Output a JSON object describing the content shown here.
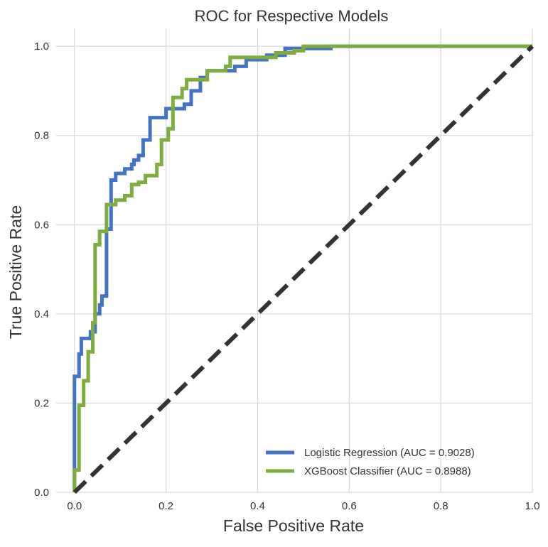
{
  "chart_data": {
    "type": "line",
    "title": "ROC for Respective Models",
    "xlabel": "False Positive Rate",
    "ylabel": "True Positive Rate",
    "xlim": [
      -0.04,
      1.0
    ],
    "ylim": [
      0.0,
      1.04
    ],
    "xticks": [
      "0.0",
      "0.2",
      "0.4",
      "0.6",
      "0.8",
      "1.0"
    ],
    "yticks": [
      "0.0",
      "0.2",
      "0.4",
      "0.6",
      "0.8",
      "1.0"
    ],
    "grid": true,
    "legend_position": "lower-right",
    "series": [
      {
        "name": "Logistic Regression (AUC = 0.9028)",
        "color": "#4472c4",
        "points": [
          [
            0,
            0
          ],
          [
            0,
            0.06
          ],
          [
            0,
            0.26
          ],
          [
            0.01,
            0.26
          ],
          [
            0.01,
            0.31
          ],
          [
            0.015,
            0.31
          ],
          [
            0.015,
            0.345
          ],
          [
            0.035,
            0.345
          ],
          [
            0.035,
            0.36
          ],
          [
            0.04,
            0.36
          ],
          [
            0.045,
            0.36
          ],
          [
            0.045,
            0.4
          ],
          [
            0.055,
            0.4
          ],
          [
            0.055,
            0.42
          ],
          [
            0.06,
            0.42
          ],
          [
            0.06,
            0.44
          ],
          [
            0.07,
            0.44
          ],
          [
            0.07,
            0.59
          ],
          [
            0.08,
            0.59
          ],
          [
            0.08,
            0.7
          ],
          [
            0.09,
            0.7
          ],
          [
            0.09,
            0.715
          ],
          [
            0.11,
            0.715
          ],
          [
            0.11,
            0.725
          ],
          [
            0.125,
            0.725
          ],
          [
            0.125,
            0.735
          ],
          [
            0.13,
            0.735
          ],
          [
            0.13,
            0.745
          ],
          [
            0.14,
            0.745
          ],
          [
            0.14,
            0.755
          ],
          [
            0.15,
            0.755
          ],
          [
            0.15,
            0.79
          ],
          [
            0.165,
            0.79
          ],
          [
            0.165,
            0.84
          ],
          [
            0.2,
            0.84
          ],
          [
            0.2,
            0.86
          ],
          [
            0.24,
            0.86
          ],
          [
            0.24,
            0.87
          ],
          [
            0.255,
            0.87
          ],
          [
            0.255,
            0.9
          ],
          [
            0.275,
            0.9
          ],
          [
            0.275,
            0.93
          ],
          [
            0.29,
            0.93
          ],
          [
            0.29,
            0.945
          ],
          [
            0.35,
            0.945
          ],
          [
            0.35,
            0.955
          ],
          [
            0.375,
            0.955
          ],
          [
            0.375,
            0.97
          ],
          [
            0.42,
            0.97
          ],
          [
            0.42,
            0.98
          ],
          [
            0.46,
            0.98
          ],
          [
            0.46,
            0.995
          ],
          [
            0.56,
            0.995
          ],
          [
            0.56,
            1.0
          ],
          [
            1.0,
            1.0
          ]
        ]
      },
      {
        "name": "XGBoost Classifier (AUC = 0.8988)",
        "color": "#7fac3e",
        "points": [
          [
            0,
            0
          ],
          [
            0,
            0.05
          ],
          [
            0.01,
            0.05
          ],
          [
            0.01,
            0.195
          ],
          [
            0.02,
            0.195
          ],
          [
            0.02,
            0.25
          ],
          [
            0.03,
            0.25
          ],
          [
            0.03,
            0.315
          ],
          [
            0.04,
            0.315
          ],
          [
            0.04,
            0.38
          ],
          [
            0.045,
            0.38
          ],
          [
            0.045,
            0.555
          ],
          [
            0.055,
            0.555
          ],
          [
            0.055,
            0.585
          ],
          [
            0.07,
            0.585
          ],
          [
            0.07,
            0.645
          ],
          [
            0.09,
            0.645
          ],
          [
            0.09,
            0.655
          ],
          [
            0.11,
            0.655
          ],
          [
            0.11,
            0.665
          ],
          [
            0.125,
            0.665
          ],
          [
            0.125,
            0.69
          ],
          [
            0.14,
            0.69
          ],
          [
            0.14,
            0.695
          ],
          [
            0.155,
            0.695
          ],
          [
            0.155,
            0.71
          ],
          [
            0.18,
            0.71
          ],
          [
            0.18,
            0.735
          ],
          [
            0.19,
            0.735
          ],
          [
            0.19,
            0.79
          ],
          [
            0.205,
            0.79
          ],
          [
            0.205,
            0.815
          ],
          [
            0.215,
            0.815
          ],
          [
            0.215,
            0.885
          ],
          [
            0.235,
            0.885
          ],
          [
            0.235,
            0.905
          ],
          [
            0.245,
            0.905
          ],
          [
            0.245,
            0.925
          ],
          [
            0.29,
            0.925
          ],
          [
            0.29,
            0.945
          ],
          [
            0.33,
            0.945
          ],
          [
            0.33,
            0.955
          ],
          [
            0.34,
            0.955
          ],
          [
            0.34,
            0.975
          ],
          [
            0.44,
            0.975
          ],
          [
            0.44,
            0.985
          ],
          [
            0.48,
            0.985
          ],
          [
            0.48,
            0.99
          ],
          [
            0.5,
            0.99
          ],
          [
            0.5,
            1.0
          ],
          [
            1.0,
            1.0
          ]
        ]
      },
      {
        "name": "",
        "color": "#333333",
        "style": "dashed",
        "points": [
          [
            0,
            0
          ],
          [
            1.0,
            1.0
          ]
        ]
      }
    ]
  }
}
